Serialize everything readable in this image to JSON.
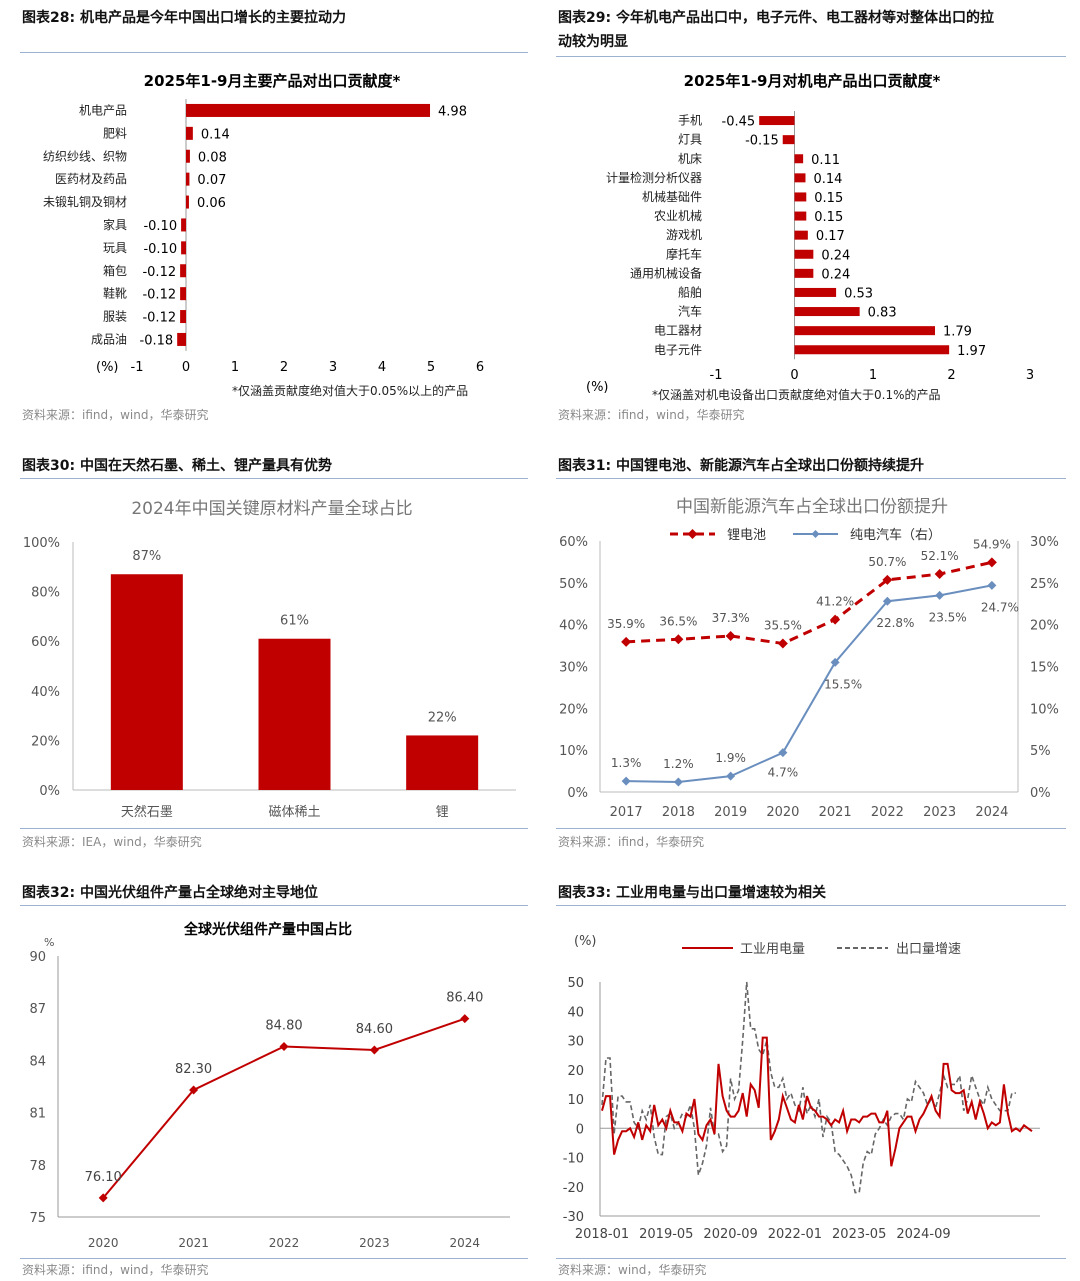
{
  "fig28": {
    "caption": "图表28:  机电产品是今年中国出口增长的主要拉动力",
    "source": "资料来源：ifind，wind，华泰研究",
    "chart_data": {
      "type": "bar",
      "orientation": "horizontal",
      "title": "2025年1-9月主要产品对出口贡献度*",
      "xlabel": "(%)",
      "xlim": [
        -1,
        6
      ],
      "xticks": [
        -1,
        0,
        1,
        2,
        3,
        4,
        5,
        6
      ],
      "note": "*仅涵盖贡献度绝对值大于0.05%以上的产品",
      "categories": [
        "机电产品",
        "肥料",
        "纺织纱线、织物",
        "医药材及药品",
        "未锻轧铜及铜材",
        "家具",
        "玩具",
        "箱包",
        "鞋靴",
        "服装",
        "成品油"
      ],
      "values": [
        4.98,
        0.14,
        0.08,
        0.07,
        0.06,
        -0.1,
        -0.1,
        -0.12,
        -0.12,
        -0.12,
        -0.18
      ],
      "labels": [
        "4.98",
        "0.14",
        "0.08",
        "0.07",
        "0.06",
        "-0.10",
        "-0.10",
        "-0.12",
        "-0.12",
        "-0.12",
        "-0.18"
      ],
      "color": "#c00000"
    }
  },
  "fig29": {
    "caption_line1": "图表29:  今年机电产品出口中，电子元件、电工器材等对整体出口的拉",
    "caption_line2": "动较为明显",
    "source": "资料来源：ifind，wind，华泰研究",
    "chart_data": {
      "type": "bar",
      "orientation": "horizontal",
      "title": "2025年1-9月对机电产品出口贡献度*",
      "xlabel": "(%)",
      "xlim": [
        -1,
        3
      ],
      "xticks": [
        -1,
        0,
        1,
        2,
        3
      ],
      "note": "*仅涵盖对机电设备出口贡献度绝对值大于0.1%的产品",
      "categories": [
        "手机",
        "灯具",
        "机床",
        "计量检测分析仪器",
        "机械基础件",
        "农业机械",
        "游戏机",
        "摩托车",
        "通用机械设备",
        "船舶",
        "汽车",
        "电工器材",
        "电子元件"
      ],
      "values": [
        -0.45,
        -0.15,
        0.11,
        0.14,
        0.15,
        0.15,
        0.17,
        0.24,
        0.24,
        0.53,
        0.83,
        1.79,
        1.97
      ],
      "labels": [
        "-0.45",
        "-0.15",
        "0.11",
        "0.14",
        "0.15",
        "0.15",
        "0.17",
        "0.24",
        "0.24",
        "0.53",
        "0.83",
        "1.79",
        "1.97"
      ],
      "color": "#c00000"
    }
  },
  "fig30": {
    "caption": "图表30:  中国在天然石墨、稀土、锂产量具有优势",
    "source": "资料来源：IEA，wind，华泰研究",
    "chart_data": {
      "type": "bar",
      "title": "2024年中国关键原材料产量全球占比",
      "categories": [
        "天然石墨",
        "磁体稀土",
        "锂"
      ],
      "values": [
        87,
        61,
        22
      ],
      "labels": [
        "87%",
        "61%",
        "22%"
      ],
      "ylim": [
        0,
        100
      ],
      "yticks": [
        "0%",
        "20%",
        "40%",
        "60%",
        "80%",
        "100%"
      ],
      "color": "#c00000"
    }
  },
  "fig31": {
    "caption": "图表31:  中国锂电池、新能源汽车占全球出口份额持续提升",
    "source": "资料来源：ifind，华泰研究",
    "chart_data": {
      "type": "line",
      "title": "中国新能源汽车占全球出口份额提升",
      "x": [
        "2017",
        "2018",
        "2019",
        "2020",
        "2021",
        "2022",
        "2023",
        "2024"
      ],
      "series": [
        {
          "name": "锂电池",
          "axis": "left",
          "values": [
            35.9,
            36.5,
            37.3,
            35.5,
            41.2,
            50.7,
            52.1,
            54.9
          ],
          "labels": [
            "35.9%",
            "36.5%",
            "37.3%",
            "35.5%",
            "41.2%",
            "50.7%",
            "52.1%",
            "54.9%"
          ],
          "color": "#c00000",
          "style": "dashed"
        },
        {
          "name": "纯电汽车（右）",
          "axis": "right",
          "values": [
            1.3,
            1.2,
            1.9,
            4.7,
            15.5,
            22.8,
            23.5,
            24.7
          ],
          "labels": [
            "1.3%",
            "1.2%",
            "1.9%",
            "4.7%",
            "15.5%",
            "22.8%",
            "23.5%",
            "24.7%"
          ],
          "color": "#6a8fbf",
          "style": "solid"
        }
      ],
      "ylim_left": [
        0,
        60
      ],
      "yticks_left": [
        "0%",
        "10%",
        "20%",
        "30%",
        "40%",
        "50%",
        "60%"
      ],
      "ylim_right": [
        0,
        30
      ],
      "yticks_right": [
        "0%",
        "5%",
        "10%",
        "15%",
        "20%",
        "25%",
        "30%"
      ],
      "legend": "top"
    }
  },
  "fig32": {
    "caption": "图表32:  中国光伏组件产量占全球绝对主导地位",
    "source": "资料来源：ifind，wind，华泰研究",
    "chart_data": {
      "type": "line",
      "title": "全球光伏组件产量中国占比",
      "ylabel": "%",
      "x": [
        "2020",
        "2021",
        "2022",
        "2023",
        "2024"
      ],
      "values": [
        76.1,
        82.3,
        84.8,
        84.6,
        86.4
      ],
      "labels": [
        "76.10",
        "82.30",
        "84.80",
        "84.60",
        "86.40"
      ],
      "ylim": [
        75,
        90
      ],
      "yticks": [
        "75",
        "78",
        "81",
        "84",
        "87",
        "90"
      ],
      "color": "#c00000"
    }
  },
  "fig33": {
    "caption": "图表33:  工业用电量与出口量增速较为相关",
    "source": "资料来源：wind，华泰研究",
    "chart_data": {
      "type": "line",
      "ylabel": "(%)",
      "ylim": [
        -30,
        50
      ],
      "yticks": [
        "-30",
        "-20",
        "-10",
        "0",
        "10",
        "20",
        "30",
        "40",
        "50"
      ],
      "xticks": [
        "2018-01",
        "2019-05",
        "2020-09",
        "2022-01",
        "2023-05",
        "2024-09"
      ],
      "legend": "top",
      "series": [
        {
          "name": "工业用电量",
          "color": "#c00000",
          "style": "solid",
          "values": [
            6,
            11,
            11,
            -9,
            -4,
            -1,
            -1,
            0,
            -3,
            2,
            -4,
            1,
            -1,
            8,
            1,
            3,
            0,
            6,
            2,
            2,
            -1,
            5,
            4,
            10,
            -2,
            -4,
            1,
            3,
            -2,
            22,
            11,
            6,
            4,
            4,
            6,
            12,
            4,
            15,
            13,
            7,
            31,
            31,
            -4,
            -1,
            3,
            11,
            7,
            3,
            2,
            8,
            3,
            11,
            7,
            6,
            4,
            4,
            3,
            1,
            3,
            2,
            6,
            -1,
            3,
            3,
            2,
            4,
            4,
            5,
            5,
            2,
            2,
            6,
            -13,
            -7,
            0,
            2,
            4,
            4,
            -1,
            3,
            5,
            8,
            11,
            6,
            4,
            22,
            22,
            13,
            12,
            12,
            13,
            5,
            9,
            3,
            9,
            5,
            0,
            2,
            1,
            2,
            15,
            5,
            -1,
            0,
            -1,
            1,
            0,
            -1
          ]
        },
        {
          "name": "出口量增速",
          "color": "#666666",
          "style": "dashed",
          "values": [
            8,
            24,
            24,
            -2,
            11,
            11,
            9,
            9,
            2,
            0,
            6,
            3,
            8,
            -3,
            -9,
            -9,
            4,
            5,
            0,
            2,
            5,
            4,
            8,
            0,
            -16,
            -12,
            -6,
            7,
            -2,
            -2,
            -8,
            -6,
            17,
            10,
            13,
            30,
            50,
            34,
            34,
            27,
            25,
            30,
            19,
            14,
            14,
            17,
            10,
            12,
            8,
            6,
            14,
            5,
            8,
            4,
            10,
            -3,
            4,
            2,
            -8,
            -9,
            -11,
            -13,
            -16,
            -22,
            -22,
            -12,
            -8,
            -9,
            -2,
            0,
            3,
            1,
            4,
            5,
            5,
            3,
            10,
            9,
            16,
            14,
            12,
            8,
            10,
            7,
            12,
            18,
            14,
            15,
            15,
            18,
            6,
            10,
            18,
            14,
            10,
            8,
            14,
            10,
            8,
            6,
            6,
            6,
            12,
            12
          ]
        }
      ]
    }
  }
}
